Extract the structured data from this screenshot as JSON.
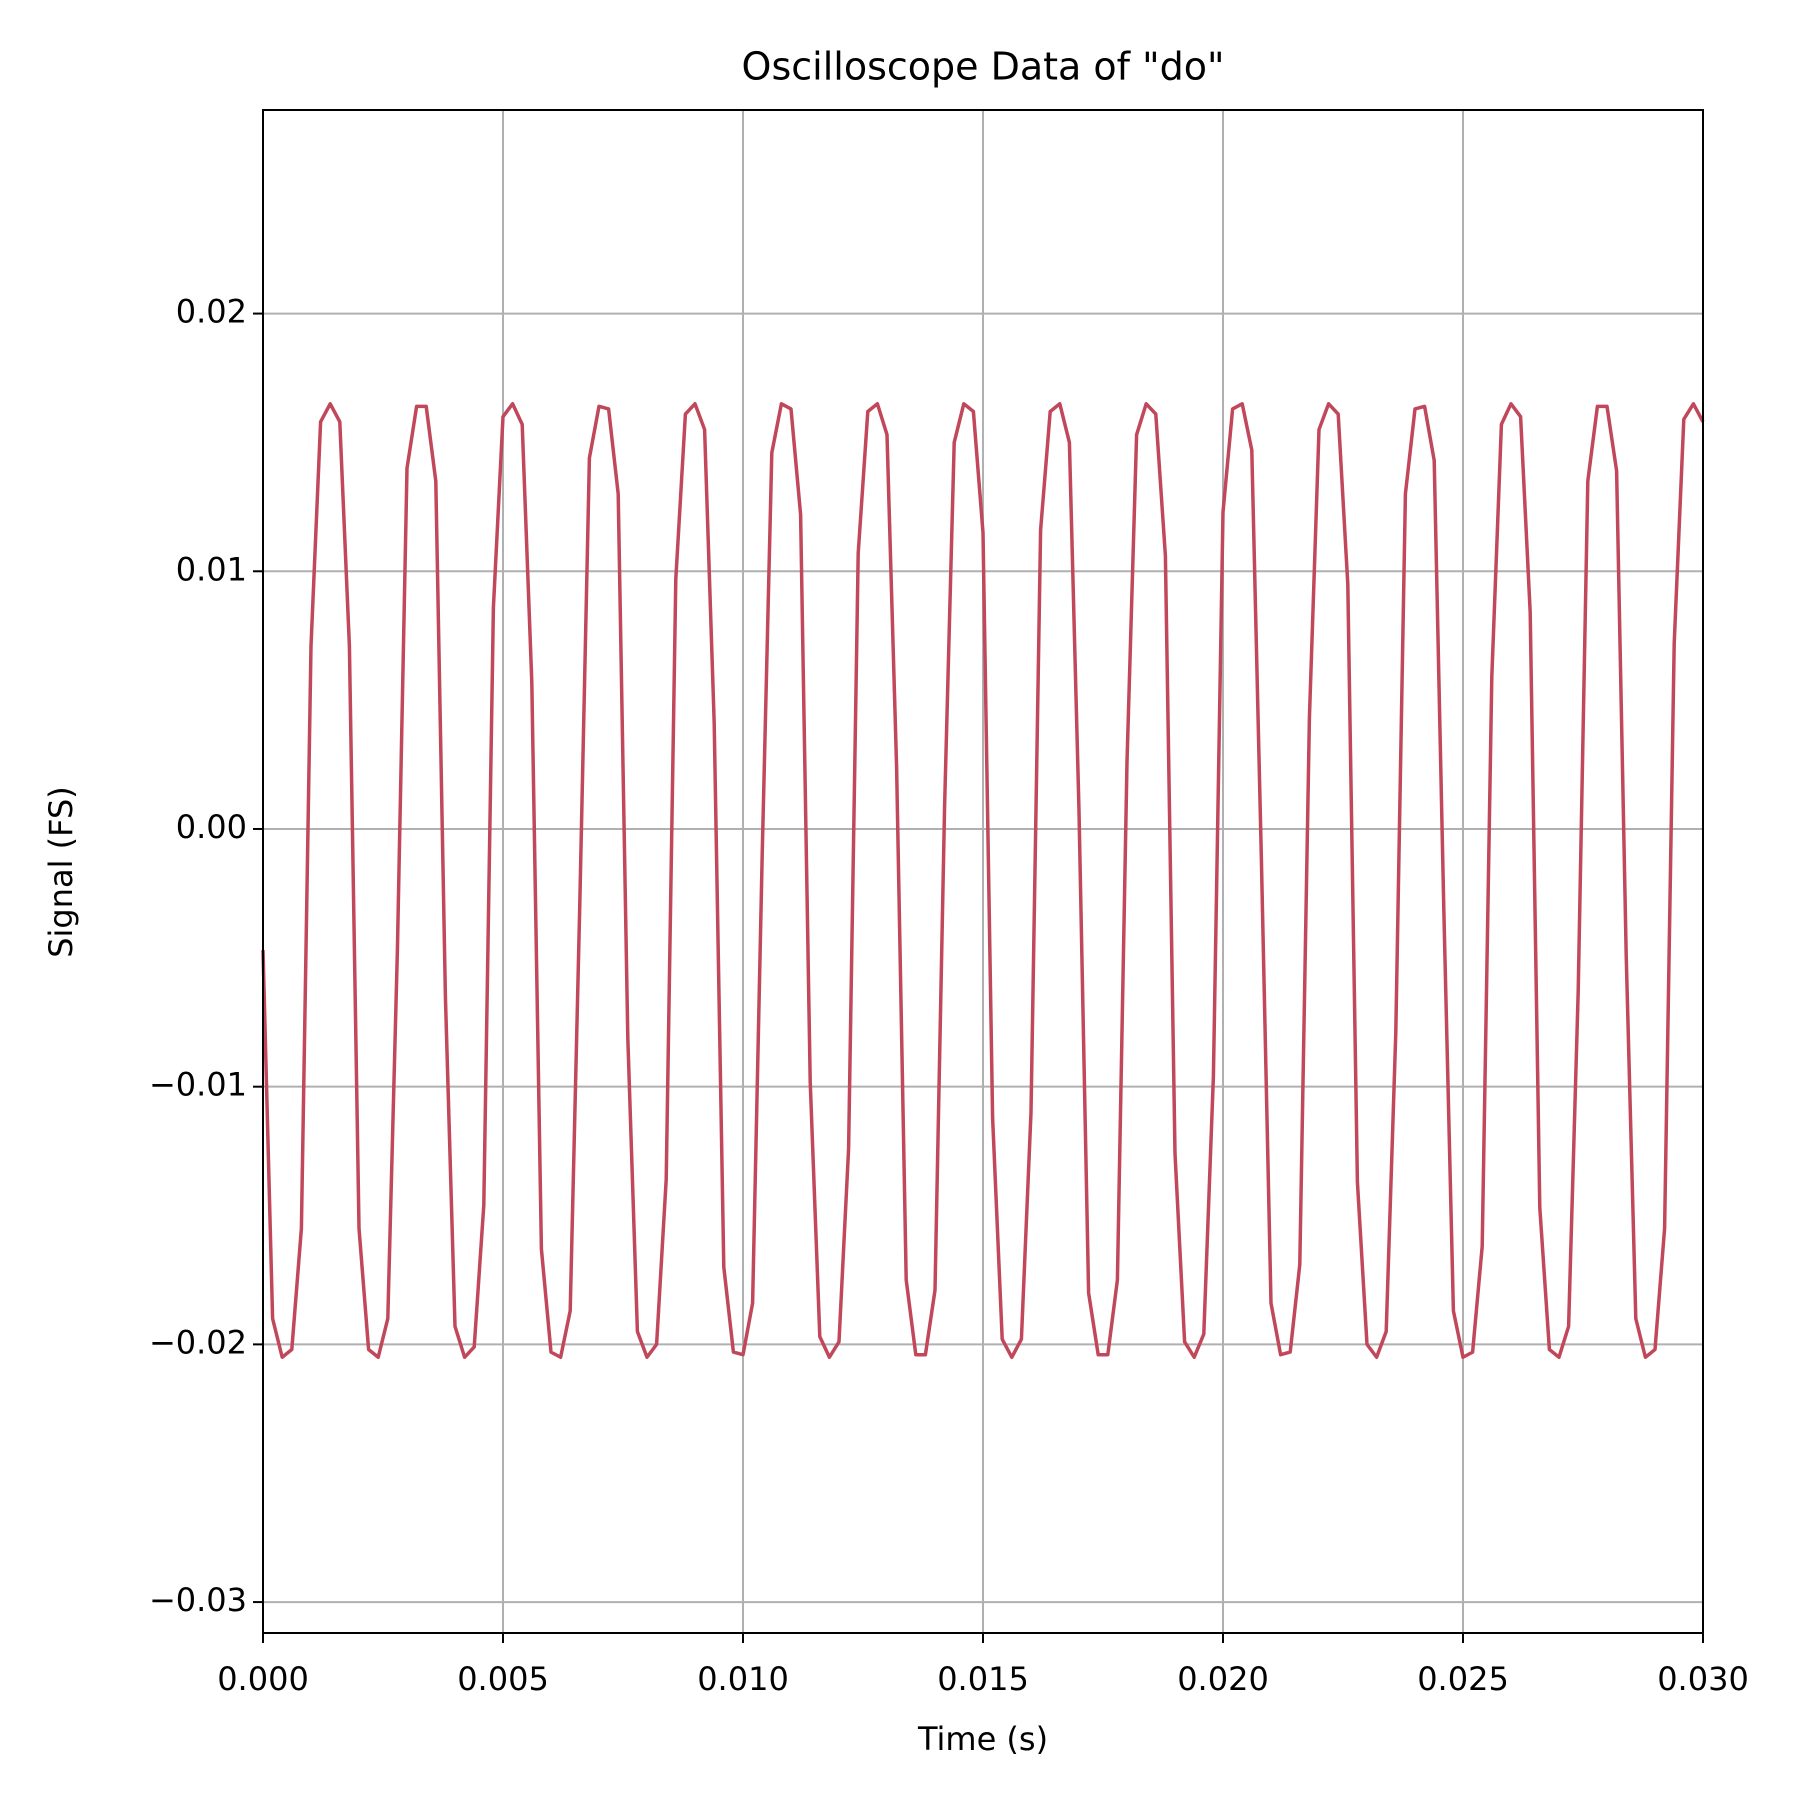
{
  "chart_data": {
    "type": "line",
    "title": "Oscilloscope Data of \"do\"",
    "x_label": "Time (s)",
    "y_label": "Signal (FS)",
    "x": [
      0,
      0.0002,
      0.0004,
      0.0006,
      0.0008,
      0.001,
      0.0012,
      0.0014,
      0.0016,
      0.0018,
      0.002,
      0.0022,
      0.0024,
      0.0026,
      0.0028,
      0.003,
      0.0032,
      0.0034,
      0.0036,
      0.0038,
      0.004,
      0.0042,
      0.0044,
      0.0046,
      0.0048,
      0.005,
      0.0052,
      0.0054,
      0.0056,
      0.0058,
      0.006,
      0.0062,
      0.0064,
      0.0066,
      0.0068,
      0.007,
      0.0072,
      0.0074,
      0.0076,
      0.0078,
      0.008,
      0.0082,
      0.0084,
      0.0086,
      0.0088,
      0.009,
      0.0092,
      0.0094,
      0.0096,
      0.0098,
      0.01,
      0.0102,
      0.0104,
      0.0106,
      0.0108,
      0.011,
      0.0112,
      0.0114,
      0.0116,
      0.0118,
      0.012,
      0.0122,
      0.0124,
      0.0126,
      0.0128,
      0.013,
      0.0132,
      0.0134,
      0.0136,
      0.0138,
      0.014,
      0.0142,
      0.0144,
      0.0146,
      0.0148,
      0.015,
      0.0152,
      0.0154,
      0.0156,
      0.0158,
      0.016,
      0.0162,
      0.0164,
      0.0166,
      0.0168,
      0.017,
      0.0172,
      0.0174,
      0.0176,
      0.0178,
      0.018,
      0.0182,
      0.0184,
      0.0186,
      0.0188,
      0.019,
      0.0192,
      0.0194,
      0.0196,
      0.0198,
      0.02,
      0.0202,
      0.0204,
      0.0206,
      0.0208,
      0.021,
      0.0212,
      0.0214,
      0.0216,
      0.0218,
      0.022,
      0.0222,
      0.0224,
      0.0226,
      0.0228,
      0.023,
      0.0232,
      0.0234,
      0.0236,
      0.0238,
      0.024,
      0.0242,
      0.0244,
      0.0246,
      0.0248,
      0.025,
      0.0252,
      0.0254,
      0.0256,
      0.0258,
      0.026,
      0.0262,
      0.0264,
      0.0266,
      0.0268,
      0.027,
      0.0272,
      0.0274,
      0.0276,
      0.0278,
      0.028,
      0.0282,
      0.0284,
      0.0286,
      0.0288,
      0.029,
      0.0292,
      0.0294,
      0.0296,
      0.0298,
      0.03
    ],
    "values": [
      -0.0047,
      -0.019,
      -0.0205,
      -0.0202,
      -0.0155,
      0.0071,
      0.0158,
      0.0165,
      0.0158,
      0.0071,
      -0.0155,
      -0.0202,
      -0.0205,
      -0.019,
      -0.0047,
      0.014,
      0.0164,
      0.0164,
      0.0135,
      -0.0065,
      -0.0193,
      -0.0205,
      -0.0201,
      -0.0146,
      0.0086,
      0.016,
      0.0165,
      0.0157,
      0.0057,
      -0.0163,
      -0.0203,
      -0.0205,
      -0.0187,
      -0.0029,
      0.0144,
      0.0164,
      0.0163,
      0.013,
      -0.0081,
      -0.0195,
      -0.0205,
      -0.02,
      -0.0136,
      0.0097,
      0.0161,
      0.0165,
      0.0155,
      0.0041,
      -0.017,
      -0.0203,
      -0.0204,
      -0.0184,
      -0.001,
      0.0146,
      0.0165,
      0.0163,
      0.0122,
      -0.0098,
      -0.0197,
      -0.0205,
      -0.0199,
      -0.0124,
      0.0107,
      0.0162,
      0.0165,
      0.0153,
      0.0024,
      -0.0175,
      -0.0204,
      -0.0204,
      -0.0179,
      0.0009,
      0.015,
      0.0165,
      0.0162,
      0.0115,
      -0.0112,
      -0.0198,
      -0.0205,
      -0.0198,
      -0.011,
      0.0116,
      0.0162,
      0.0165,
      0.015,
      0.0007,
      -0.018,
      -0.0204,
      -0.0204,
      -0.0175,
      0.0026,
      0.0153,
      0.0165,
      0.0161,
      0.0106,
      -0.0126,
      -0.0199,
      -0.0205,
      -0.0196,
      -0.0096,
      0.0123,
      0.0163,
      0.0165,
      0.0147,
      -0.0012,
      -0.0184,
      -0.0204,
      -0.0203,
      -0.0169,
      0.0043,
      0.0155,
      0.0165,
      0.0161,
      0.0095,
      -0.0137,
      -0.02,
      -0.0205,
      -0.0195,
      -0.0079,
      0.013,
      0.0163,
      0.0164,
      0.0143,
      -0.0031,
      -0.0187,
      -0.0205,
      -0.0203,
      -0.0162,
      0.0059,
      0.0157,
      0.0165,
      0.016,
      0.0084,
      -0.0147,
      -0.0202,
      -0.0205,
      -0.0193,
      -0.0063,
      0.0135,
      0.0164,
      0.0164,
      0.0139,
      -0.0049,
      -0.019,
      -0.0205,
      -0.0202,
      -0.0155,
      0.0072,
      0.0159,
      0.0165,
      0.0158
    ],
    "color": "#c0485a",
    "xlim": [
      0,
      0.03
    ],
    "ylim": [
      -0.0312,
      0.0279
    ],
    "xticks": [
      {
        "value": 0,
        "label": "0.000"
      },
      {
        "value": 0.005,
        "label": "0.005"
      },
      {
        "value": 0.01,
        "label": "0.010"
      },
      {
        "value": 0.015,
        "label": "0.015"
      },
      {
        "value": 0.02,
        "label": "0.020"
      },
      {
        "value": 0.025,
        "label": "0.025"
      },
      {
        "value": 0.03,
        "label": "0.030"
      }
    ],
    "yticks": [
      {
        "value": -0.03,
        "label": "−0.03"
      },
      {
        "value": -0.02,
        "label": "−0.02"
      },
      {
        "value": -0.01,
        "label": "−0.01"
      },
      {
        "value": 0,
        "label": "0.00"
      },
      0.01,
      0.02
    ],
    "grid": true
  }
}
